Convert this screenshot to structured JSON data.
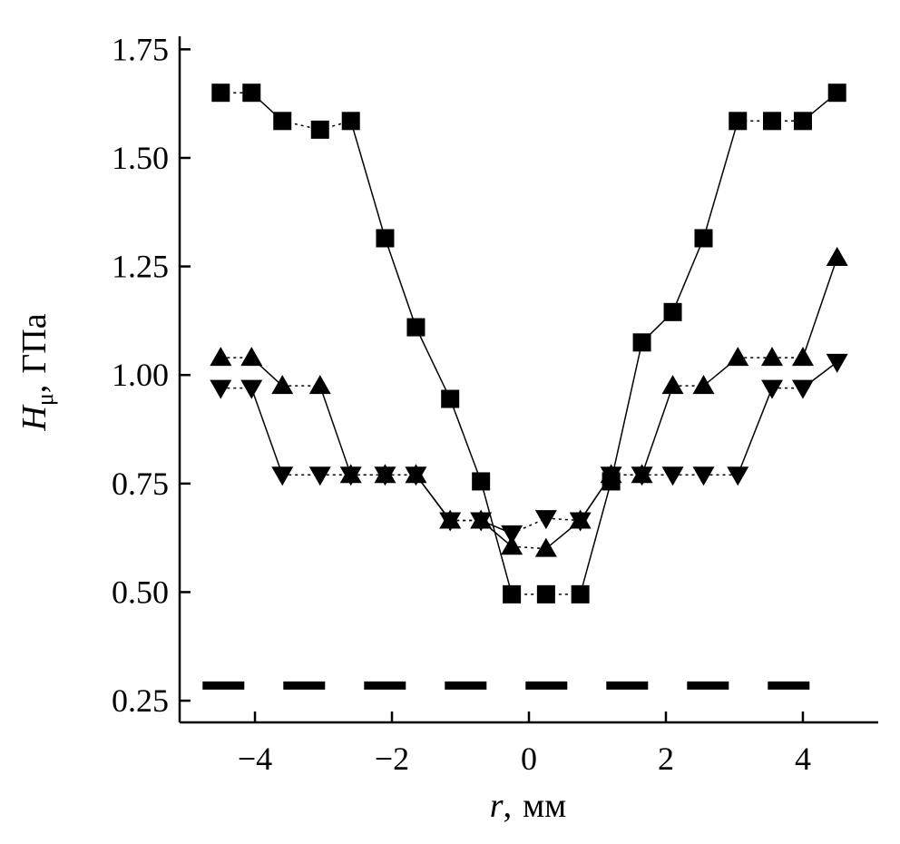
{
  "chart_data": {
    "type": "line",
    "xlabel": {
      "var": "r",
      "sep": ",",
      "unit": "мм"
    },
    "ylabel": {
      "var": "H",
      "sub": "μ",
      "sep": ",",
      "unit": "ГПа"
    },
    "xlim": [
      -5.1,
      5.1
    ],
    "ylim": [
      0.2,
      1.78
    ],
    "xticks": [
      -4,
      -2,
      0,
      2,
      4
    ],
    "xtick_labels": [
      "−4",
      "−2",
      "0",
      "2",
      "4"
    ],
    "yticks": [
      0.25,
      0.5,
      0.75,
      1.0,
      1.25,
      1.5,
      1.75
    ],
    "ytick_labels": [
      "0.25",
      "0.50",
      "0.75",
      "1.00",
      "1.25",
      "1.50",
      "1.75"
    ],
    "grid": false,
    "series": [
      {
        "marker": "square",
        "color": "#000000",
        "x": [
          -4.5,
          -4.05,
          -3.6,
          -3.05,
          -2.6,
          -2.1,
          -1.65,
          -1.15,
          -0.7,
          -0.25,
          0.25,
          0.75,
          1.2,
          1.65,
          2.1,
          2.55,
          3.05,
          3.55,
          4.0,
          4.5
        ],
        "y": [
          1.65,
          1.65,
          1.585,
          1.565,
          1.585,
          1.315,
          1.11,
          0.945,
          0.755,
          0.495,
          0.495,
          0.495,
          0.755,
          1.075,
          1.145,
          1.315,
          1.585,
          1.585,
          1.585,
          1.65
        ],
        "segments": [
          "dotted",
          "solid",
          "dotted",
          "dotted",
          "solid",
          "solid",
          "solid",
          "solid",
          "solid",
          "dotted",
          "dotted",
          "solid",
          "solid",
          "solid",
          "solid",
          "solid",
          "dotted",
          "dotted",
          "solid"
        ]
      },
      {
        "marker": "triangle-up",
        "color": "#000000",
        "x": [
          -4.5,
          -4.05,
          -3.6,
          -3.05,
          -2.6,
          -2.1,
          -1.65,
          -1.15,
          -0.7,
          -0.25,
          0.25,
          0.75,
          1.2,
          1.65,
          2.1,
          2.55,
          3.05,
          3.55,
          4.0,
          4.5
        ],
        "y": [
          1.04,
          1.04,
          0.975,
          0.975,
          0.77,
          0.77,
          0.77,
          0.665,
          0.665,
          0.605,
          0.6,
          0.665,
          0.77,
          0.77,
          0.975,
          0.975,
          1.04,
          1.04,
          1.04,
          1.27
        ],
        "segments": [
          "dotted",
          "solid",
          "dotted",
          "solid",
          "dotted",
          "dotted",
          "solid",
          "dotted",
          "solid",
          "dotted",
          "solid",
          "solid",
          "dotted",
          "solid",
          "dotted",
          "solid",
          "dotted",
          "dotted",
          "solid"
        ]
      },
      {
        "marker": "triangle-down",
        "color": "#000000",
        "x": [
          -4.5,
          -4.05,
          -3.6,
          -3.05,
          -2.6,
          -2.1,
          -1.65,
          -1.15,
          -0.7,
          -0.25,
          0.25,
          0.75,
          1.2,
          1.65,
          2.1,
          2.55,
          3.05,
          3.55,
          4.0,
          4.5
        ],
        "y": [
          0.97,
          0.97,
          0.77,
          0.77,
          0.77,
          0.77,
          0.77,
          0.665,
          0.665,
          0.635,
          0.67,
          0.665,
          0.77,
          0.77,
          0.77,
          0.77,
          0.77,
          0.97,
          0.97,
          1.03
        ],
        "segments": [
          "dotted",
          "solid",
          "dotted",
          "dotted",
          "dotted",
          "dotted",
          "solid",
          "dotted",
          "solid",
          "dotted",
          "dotted",
          "solid",
          "dotted",
          "dotted",
          "dotted",
          "dotted",
          "solid",
          "dotted",
          "solid"
        ]
      },
      {
        "marker": "none",
        "style": "dashed",
        "color": "#000000",
        "x": [
          -4.5,
          4.0
        ],
        "y": [
          0.285,
          0.285
        ]
      }
    ]
  }
}
